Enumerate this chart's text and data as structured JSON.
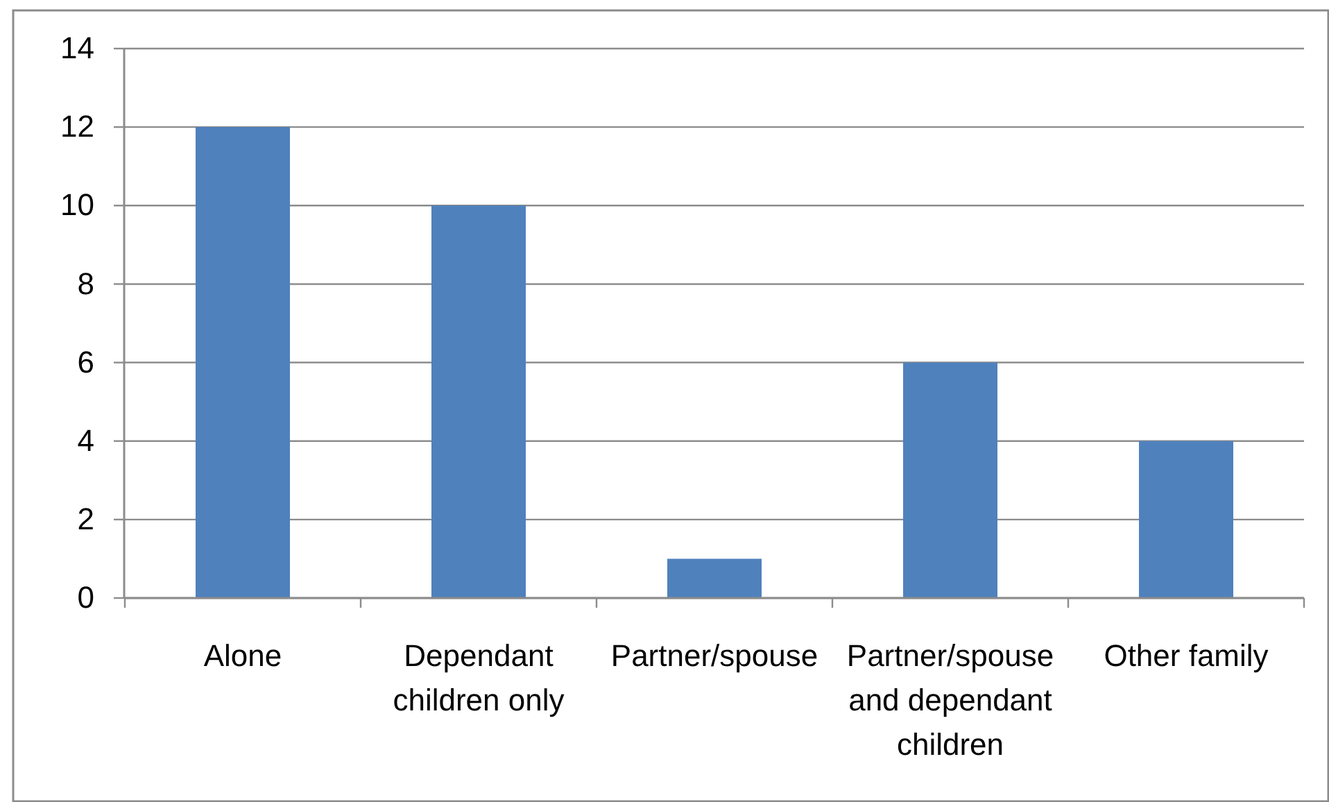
{
  "chart_data": {
    "type": "bar",
    "categories": [
      "Alone",
      "Dependant children only",
      "Partner/spouse",
      "Partner/spouse and dependant children",
      "Other family"
    ],
    "values": [
      12,
      10,
      1,
      6,
      4
    ],
    "color": "#4f81bd",
    "ylim": [
      0,
      14
    ],
    "yticks": [
      0,
      2,
      4,
      6,
      8,
      10,
      12,
      14
    ],
    "grid": "y"
  }
}
